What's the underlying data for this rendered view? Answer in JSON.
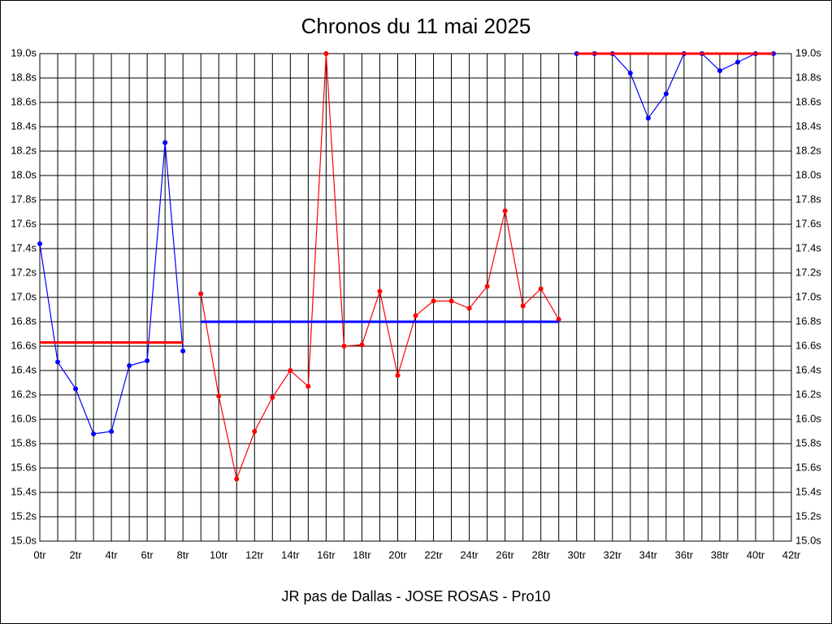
{
  "chart_data": {
    "type": "line",
    "title": "Chronos du 11 mai 2025",
    "x_label": "JR pas de Dallas - JOSE ROSAS - Pro10",
    "xlim": [
      0,
      42
    ],
    "xticks": [
      {
        "value": 0,
        "label": "0tr"
      },
      {
        "value": 2,
        "label": "2tr"
      },
      {
        "value": 4,
        "label": "4tr"
      },
      {
        "value": 6,
        "label": "6tr"
      },
      {
        "value": 8,
        "label": "8tr"
      },
      {
        "value": 10,
        "label": "10tr"
      },
      {
        "value": 12,
        "label": "12tr"
      },
      {
        "value": 14,
        "label": "14tr"
      },
      {
        "value": 16,
        "label": "16tr"
      },
      {
        "value": 18,
        "label": "18tr"
      },
      {
        "value": 20,
        "label": "20tr"
      },
      {
        "value": 22,
        "label": "22tr"
      },
      {
        "value": 24,
        "label": "24tr"
      },
      {
        "value": 26,
        "label": "26tr"
      },
      {
        "value": 28,
        "label": "28tr"
      },
      {
        "value": 30,
        "label": "30tr"
      },
      {
        "value": 32,
        "label": "32tr"
      },
      {
        "value": 34,
        "label": "34tr"
      },
      {
        "value": 36,
        "label": "36tr"
      },
      {
        "value": 38,
        "label": "38tr"
      },
      {
        "value": 40,
        "label": "40tr"
      },
      {
        "value": 42,
        "label": "42tr"
      }
    ],
    "minor_xticks": [
      1,
      3,
      5,
      7,
      9,
      11,
      13,
      15,
      17,
      19,
      21,
      23,
      25,
      27,
      29,
      31,
      33,
      35,
      37,
      39,
      41
    ],
    "ylim": [
      15.0,
      19.0
    ],
    "yticks": [
      {
        "value": 15.0,
        "label": "15.0s"
      },
      {
        "value": 15.2,
        "label": "15.2s"
      },
      {
        "value": 15.4,
        "label": "15.4s"
      },
      {
        "value": 15.6,
        "label": "15.6s"
      },
      {
        "value": 15.8,
        "label": "15.8s"
      },
      {
        "value": 16.0,
        "label": "16.0s"
      },
      {
        "value": 16.2,
        "label": "16.2s"
      },
      {
        "value": 16.4,
        "label": "16.4s"
      },
      {
        "value": 16.6,
        "label": "16.6s"
      },
      {
        "value": 16.8,
        "label": "16.8s"
      },
      {
        "value": 17.0,
        "label": "17.0s"
      },
      {
        "value": 17.2,
        "label": "17.2s"
      },
      {
        "value": 17.4,
        "label": "17.4s"
      },
      {
        "value": 17.6,
        "label": "17.6s"
      },
      {
        "value": 17.8,
        "label": "17.8s"
      },
      {
        "value": 18.0,
        "label": "18.0s"
      },
      {
        "value": 18.2,
        "label": "18.2s"
      },
      {
        "value": 18.4,
        "label": "18.4s"
      },
      {
        "value": 18.6,
        "label": "18.6s"
      },
      {
        "value": 18.8,
        "label": "18.8s"
      },
      {
        "value": 19.0,
        "label": "19.0s"
      }
    ],
    "grid": true,
    "series": [
      {
        "color": "#0000ff",
        "markers": true,
        "x": [
          0,
          1,
          2,
          3,
          4,
          5,
          6,
          7,
          8
        ],
        "values": [
          17.44,
          16.47,
          16.25,
          15.88,
          15.9,
          16.44,
          16.48,
          18.27,
          16.56
        ]
      },
      {
        "color": "#ff0000",
        "markers": false,
        "x": [
          0,
          8
        ],
        "values": [
          16.63,
          16.63
        ]
      },
      {
        "color": "#ff0000",
        "markers": true,
        "x": [
          9,
          10,
          11,
          12,
          13,
          14,
          15,
          16,
          17,
          18,
          19,
          20,
          21,
          22,
          23,
          24,
          25,
          26,
          27,
          28,
          29
        ],
        "values": [
          17.03,
          16.19,
          15.51,
          15.9,
          16.18,
          16.4,
          16.27,
          19.0,
          16.6,
          16.61,
          17.05,
          16.36,
          16.85,
          16.97,
          16.97,
          16.91,
          17.09,
          17.71,
          16.93,
          17.07,
          16.82
        ]
      },
      {
        "color": "#0000ff",
        "markers": false,
        "x": [
          9,
          29
        ],
        "values": [
          16.8,
          16.8
        ]
      },
      {
        "color": "#0000ff",
        "markers": true,
        "x": [
          30,
          31,
          32,
          33,
          34,
          35,
          36,
          37,
          38,
          39,
          40,
          41
        ],
        "values": [
          19.0,
          19.0,
          19.0,
          18.84,
          18.47,
          18.67,
          19.0,
          19.0,
          18.86,
          18.93,
          19.0,
          19.0
        ]
      },
      {
        "color": "#ff0000",
        "markers": false,
        "x": [
          30,
          41
        ],
        "values": [
          19.0,
          19.0
        ]
      }
    ]
  }
}
